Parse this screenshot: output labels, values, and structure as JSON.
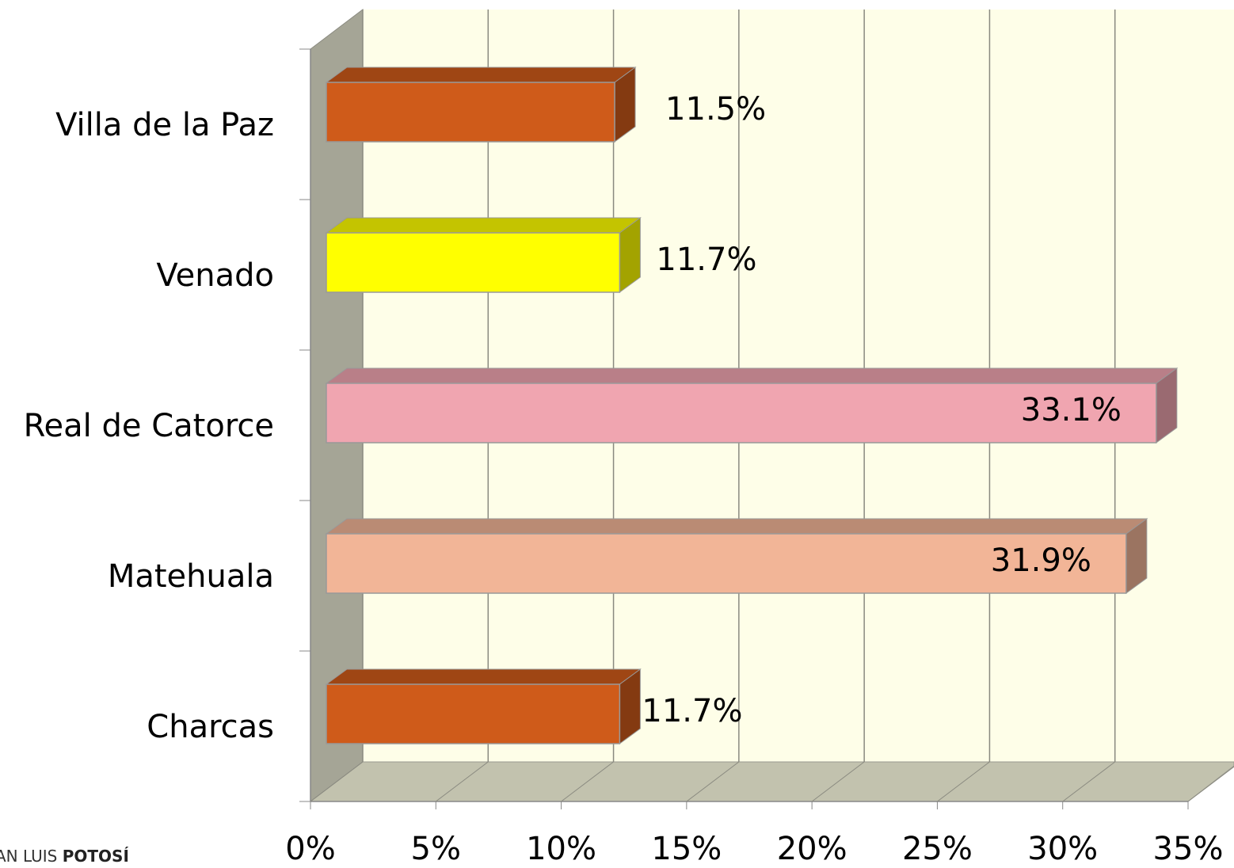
{
  "chart_data": {
    "type": "bar3d",
    "categories": [
      "Villa de la Paz",
      "Venado",
      "Real de Catorce",
      "Matehuala",
      "Charcas"
    ],
    "values": [
      11.5,
      11.7,
      33.1,
      31.9,
      11.7
    ],
    "value_labels": [
      "11.5%",
      "11.7%",
      "33.1%",
      "31.9%",
      "11.7%"
    ],
    "colors": [
      "#cf5b1a",
      "#ffff00",
      "#f0a5b0",
      "#f2b597",
      "#cf5b1a"
    ],
    "xlim": [
      0,
      35
    ],
    "xticks": [
      {
        "value": 0,
        "label": "0%"
      },
      {
        "value": 5,
        "label": "5%"
      },
      {
        "value": 10,
        "label": "10%"
      },
      {
        "value": 15,
        "label": "15%"
      },
      {
        "value": 20,
        "label": "20%"
      },
      {
        "value": 25,
        "label": "25%"
      },
      {
        "value": 30,
        "label": "30%"
      },
      {
        "value": 35,
        "label": "35%"
      }
    ],
    "grid": true
  },
  "footer": {
    "light": "AN LUIS",
    "bold": "POTOSÍ"
  }
}
